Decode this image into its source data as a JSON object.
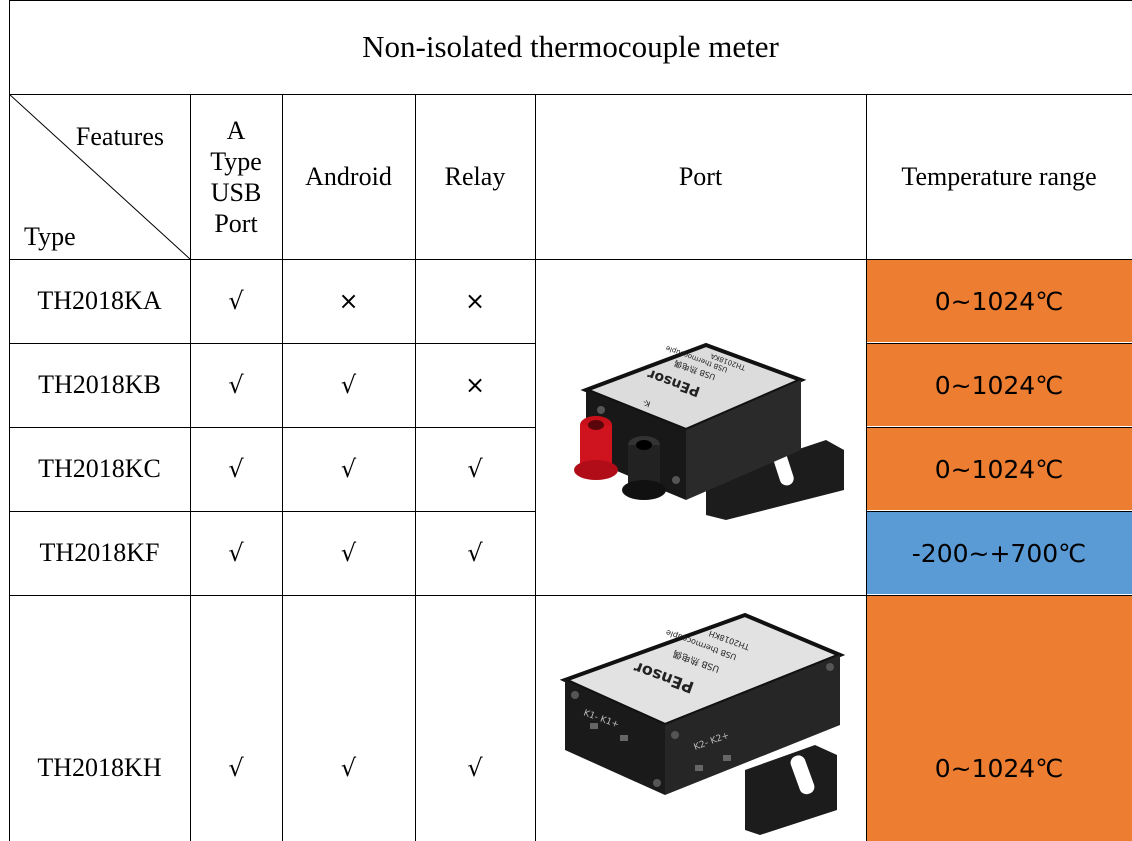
{
  "table": {
    "title": "Non-isolated thermocouple meter",
    "header": {
      "diag_top": "Features",
      "diag_bottom": "Type",
      "usb": [
        "A",
        "Type",
        "USB",
        "Port"
      ],
      "android": "Android",
      "relay": "Relay",
      "port": "Port",
      "temp": "Temperature range"
    },
    "rows": [
      {
        "type": "TH2018KA",
        "usb": "√",
        "android": "×",
        "relay": "×",
        "temp": "0~1024℃"
      },
      {
        "type": "TH2018KB",
        "usb": "√",
        "android": "√",
        "relay": "×",
        "temp": "0~1024℃"
      },
      {
        "type": "TH2018KC",
        "usb": "√",
        "android": "√",
        "relay": "√",
        "temp": "0~1024℃"
      },
      {
        "type": "TH2018KF",
        "usb": "√",
        "android": "√",
        "relay": "√",
        "temp": "-200~+700℃"
      },
      {
        "type": "TH2018KH",
        "usb": "√",
        "android": "√",
        "relay": "√",
        "temp": "0~1024℃"
      }
    ],
    "device1": {
      "brand": "PEnsor",
      "label1": "USB 热电偶",
      "label2": "USB thermocouple",
      "model": "TH2018KA",
      "terminal": "K-"
    },
    "device2": {
      "brand": "PEnsor",
      "label1": "USB 热电偶",
      "label2": "USB thermocouple",
      "model": "TH2018KH",
      "t1": "K1- K1+",
      "t2": "K2- K2+"
    }
  },
  "colors": {
    "orange": "#ED7D31",
    "blue": "#5B9BD5",
    "border": "#000000"
  }
}
